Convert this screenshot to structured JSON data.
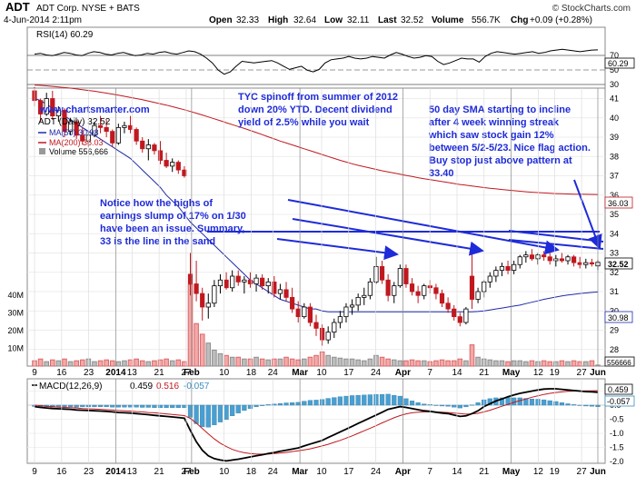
{
  "header": {
    "ticker": "ADT",
    "name": "ADT Corp. NYSE + BATS",
    "datetime": "4-Jun-2014 2:11pm",
    "open_label": "Open",
    "open": "32.33",
    "high_label": "High",
    "high": "32.64",
    "low_label": "Low",
    "low": "32.11",
    "last_label": "Last",
    "last": "32.52",
    "volume_label": "Volume",
    "volume": "556.7K",
    "change_label": "Chg",
    "change": "+0.09 (+0.28%)",
    "copyright": "© StockCharts.com"
  },
  "rsi": {
    "legend": "RSI(14) 60.29",
    "ticks": [
      70,
      50,
      30
    ],
    "value_tag": "60.29",
    "values": [
      55,
      56,
      54,
      53,
      55,
      57,
      56,
      54,
      53,
      56,
      58,
      57,
      55,
      54,
      56,
      57,
      55,
      53,
      54,
      56,
      55,
      57,
      58,
      56,
      55,
      57,
      59,
      58,
      55,
      50,
      44,
      35,
      30,
      33,
      40,
      46,
      45,
      44,
      45,
      46,
      47,
      44,
      40,
      36,
      38,
      40,
      35,
      33,
      36,
      44,
      48,
      49,
      50,
      52,
      50,
      49,
      50,
      52,
      51,
      50,
      54,
      57,
      55,
      52,
      50,
      51,
      53,
      52,
      46,
      42,
      44,
      47,
      50,
      49,
      49,
      45,
      52,
      56,
      58,
      57,
      56,
      55,
      56,
      57,
      58,
      56,
      57,
      59,
      60,
      61,
      60,
      59,
      58,
      59,
      60,
      60.29
    ]
  },
  "price": {
    "website": "www.chartsmarter.com",
    "legend_symbol": "ADT (Daily) 32.52",
    "ma50_label": "MA(50) 30.98",
    "ma200_label": "MA(200) 36.03",
    "volume_label": "Volume 556,666",
    "y_ticks": [
      41,
      40,
      39,
      38,
      37,
      36,
      35,
      34,
      33,
      32,
      31,
      30,
      29,
      28
    ],
    "volume_ticks": [
      "40M",
      "30M",
      "20M",
      "10M"
    ],
    "tags": {
      "last": "32.52",
      "ma200": "36.03",
      "ma50": "30.98",
      "volume": "556666"
    },
    "annotations": [
      {
        "id": "tyc",
        "lines": [
          "TYC spinoff from summer of 2012",
          "down 20% YTD. Decent dividend",
          "yield of 2.5% while you wait"
        ]
      },
      {
        "id": "sma",
        "lines": [
          "50 day SMA starting to incline",
          "after 4 week winning streak",
          "which saw stock gain 12%",
          "between 5/2-5/23. Nice flag action.",
          "Buy stop just above pattern at",
          "33.40"
        ]
      },
      {
        "id": "highs",
        "lines": [
          "Notice how the highs of",
          "earnings slump of 17% on 1/30",
          "have been an issue. Summary,",
          "33 is the line in the sand"
        ]
      }
    ]
  },
  "macd": {
    "legend_name": "MACD(12,26,9)",
    "macd": "0.459",
    "signal": "0.516",
    "hist": "-0.057",
    "y_ticks": [
      0.5,
      0.0,
      -0.5,
      -1.0,
      -1.5,
      -2.0
    ],
    "tags": {
      "macd": "0.459",
      "hist": "-0.057"
    }
  },
  "x_axis": {
    "labels": [
      {
        "t": "9",
        "bold": false
      },
      {
        "t": "16",
        "bold": false
      },
      {
        "t": "23",
        "bold": false
      },
      {
        "t": "2014",
        "bold": true
      },
      {
        "t": "13",
        "bold": false
      },
      {
        "t": "21",
        "bold": false
      },
      {
        "t": "27",
        "bold": false
      },
      {
        "t": "Feb",
        "bold": true
      },
      {
        "t": "10",
        "bold": false
      },
      {
        "t": "18",
        "bold": false
      },
      {
        "t": "24",
        "bold": false
      },
      {
        "t": "Mar",
        "bold": true
      },
      {
        "t": "10",
        "bold": false
      },
      {
        "t": "17",
        "bold": false
      },
      {
        "t": "24",
        "bold": false
      },
      {
        "t": "Apr",
        "bold": true
      },
      {
        "t": "7",
        "bold": false
      },
      {
        "t": "14",
        "bold": false
      },
      {
        "t": "21",
        "bold": false
      },
      {
        "t": "May",
        "bold": true
      },
      {
        "t": "12",
        "bold": false
      },
      {
        "t": "19",
        "bold": false
      },
      {
        "t": "27",
        "bold": false
      },
      {
        "t": "Jun",
        "bold": true
      }
    ]
  },
  "chart_data": {
    "type": "candlestick",
    "symbol": "ADT",
    "dates_start": "2013-12-09",
    "ohlc": [
      [
        41.4,
        41.6,
        40.6,
        40.9
      ],
      [
        40.9,
        41.0,
        39.8,
        40.2
      ],
      [
        40.2,
        41.3,
        40.1,
        41.0
      ],
      [
        41.0,
        41.4,
        39.9,
        40.1
      ],
      [
        40.1,
        40.6,
        39.8,
        40.4
      ],
      [
        40.4,
        40.5,
        39.0,
        39.3
      ],
      [
        39.3,
        40.0,
        39.1,
        39.8
      ],
      [
        39.8,
        39.9,
        38.9,
        39.1
      ],
      [
        39.1,
        39.5,
        38.6,
        38.8
      ],
      [
        38.8,
        39.3,
        38.5,
        39.1
      ],
      [
        39.1,
        39.8,
        39.0,
        39.6
      ],
      [
        39.6,
        40.1,
        39.2,
        39.5
      ],
      [
        39.5,
        39.9,
        39.0,
        39.3
      ],
      [
        39.3,
        39.4,
        38.5,
        38.7
      ],
      [
        38.7,
        39.7,
        38.6,
        39.5
      ],
      [
        39.5,
        39.8,
        39.2,
        39.6
      ],
      [
        39.6,
        40.1,
        39.2,
        39.4
      ],
      [
        39.4,
        39.5,
        38.6,
        38.8
      ],
      [
        38.8,
        39.0,
        38.2,
        38.4
      ],
      [
        38.4,
        38.9,
        37.8,
        38.6
      ],
      [
        38.6,
        38.7,
        38.1,
        38.3
      ],
      [
        38.3,
        38.8,
        37.6,
        37.8
      ],
      [
        37.8,
        38.2,
        37.4,
        37.5
      ],
      [
        37.5,
        37.9,
        37.2,
        37.7
      ],
      [
        37.7,
        37.8,
        37.1,
        37.3
      ],
      [
        37.3,
        37.5,
        36.9,
        37.0
      ],
      [
        31.9,
        33.0,
        30.8,
        31.4
      ],
      [
        31.4,
        32.6,
        30.5,
        30.9
      ],
      [
        30.9,
        31.2,
        29.5,
        30.2
      ],
      [
        30.2,
        30.9,
        29.6,
        30.4
      ],
      [
        30.4,
        31.6,
        30.2,
        31.3
      ],
      [
        31.3,
        31.9,
        30.9,
        31.6
      ],
      [
        31.6,
        32.0,
        31.1,
        31.2
      ],
      [
        31.2,
        32.1,
        31.0,
        31.8
      ],
      [
        31.8,
        32.1,
        31.3,
        31.5
      ],
      [
        31.5,
        31.8,
        30.9,
        31.6
      ],
      [
        31.6,
        32.0,
        31.2,
        31.4
      ],
      [
        31.4,
        31.9,
        31.0,
        31.7
      ],
      [
        31.7,
        31.9,
        31.1,
        31.3
      ],
      [
        31.3,
        31.7,
        30.9,
        31.5
      ],
      [
        31.5,
        31.8,
        30.7,
        30.9
      ],
      [
        30.9,
        31.4,
        30.6,
        31.1
      ],
      [
        31.1,
        31.5,
        30.5,
        30.7
      ],
      [
        30.7,
        31.2,
        29.9,
        30.1
      ],
      [
        30.1,
        30.5,
        29.4,
        29.7
      ],
      [
        29.7,
        30.4,
        29.6,
        30.2
      ],
      [
        30.2,
        30.4,
        29.2,
        29.4
      ],
      [
        29.4,
        29.8,
        28.7,
        29.1
      ],
      [
        29.1,
        29.3,
        28.2,
        28.5
      ],
      [
        28.5,
        29.2,
        28.3,
        28.9
      ],
      [
        28.9,
        29.6,
        28.6,
        29.4
      ],
      [
        29.4,
        30.0,
        29.1,
        29.7
      ],
      [
        29.7,
        30.4,
        29.4,
        30.2
      ],
      [
        30.2,
        30.6,
        29.8,
        30.3
      ],
      [
        30.3,
        30.9,
        30.0,
        30.7
      ],
      [
        30.7,
        31.2,
        30.3,
        30.8
      ],
      [
        30.8,
        31.7,
        30.6,
        31.5
      ],
      [
        31.5,
        32.8,
        31.4,
        32.3
      ],
      [
        32.3,
        32.6,
        31.4,
        31.6
      ],
      [
        31.6,
        31.9,
        30.5,
        30.8
      ],
      [
        30.8,
        31.5,
        30.4,
        31.3
      ],
      [
        31.3,
        32.4,
        31.2,
        32.2
      ],
      [
        32.2,
        32.4,
        31.2,
        31.4
      ],
      [
        31.4,
        31.7,
        30.8,
        31.0
      ],
      [
        31.0,
        31.3,
        30.4,
        30.8
      ],
      [
        30.8,
        31.4,
        30.6,
        31.3
      ],
      [
        31.3,
        31.6,
        30.9,
        31.2
      ],
      [
        31.2,
        31.4,
        30.6,
        30.9
      ],
      [
        30.9,
        31.1,
        30.2,
        30.4
      ],
      [
        30.4,
        30.7,
        29.9,
        30.1
      ],
      [
        30.1,
        30.3,
        29.5,
        29.7
      ],
      [
        29.7,
        29.9,
        29.2,
        29.4
      ],
      [
        29.4,
        30.2,
        29.3,
        30.1
      ],
      [
        31.8,
        33.1,
        30.1,
        30.6
      ],
      [
        30.6,
        31.2,
        30.4,
        31.0
      ],
      [
        31.0,
        31.6,
        30.7,
        31.5
      ],
      [
        31.5,
        32.0,
        31.2,
        31.8
      ],
      [
        31.8,
        32.3,
        31.5,
        32.1
      ],
      [
        32.1,
        32.5,
        31.8,
        32.3
      ],
      [
        32.3,
        32.6,
        31.9,
        32.1
      ],
      [
        32.1,
        32.6,
        31.9,
        32.4
      ],
      [
        32.4,
        32.9,
        32.2,
        32.8
      ],
      [
        32.8,
        33.1,
        32.5,
        32.9
      ],
      [
        32.9,
        33.2,
        32.6,
        32.7
      ],
      [
        32.7,
        33.0,
        32.4,
        32.9
      ],
      [
        32.9,
        33.1,
        32.6,
        32.8
      ],
      [
        32.8,
        33.0,
        32.4,
        32.6
      ],
      [
        32.6,
        32.9,
        32.3,
        32.7
      ],
      [
        32.7,
        33.0,
        32.5,
        32.6
      ],
      [
        32.6,
        32.9,
        32.4,
        32.8
      ],
      [
        32.8,
        32.9,
        32.3,
        32.5
      ],
      [
        32.5,
        32.8,
        32.2,
        32.4
      ],
      [
        32.4,
        32.7,
        32.2,
        32.5
      ],
      [
        32.5,
        32.7,
        32.3,
        32.43
      ],
      [
        32.33,
        32.64,
        32.11,
        32.52
      ]
    ],
    "volume_millions": [
      3,
      4,
      2.5,
      3.5,
      3,
      4,
      2.5,
      3,
      3.5,
      4,
      2.5,
      3,
      3.5,
      3,
      2.5,
      3,
      3.5,
      4,
      3,
      2.5,
      3,
      3.5,
      4,
      3,
      3.5,
      2.5,
      46,
      24,
      18,
      13,
      9,
      7,
      6,
      5,
      5,
      4,
      4,
      5,
      4,
      3.5,
      4,
      4,
      5,
      4,
      3.5,
      4,
      5,
      6,
      8,
      6,
      5,
      4.5,
      4,
      4,
      3.5,
      3,
      4,
      6,
      5,
      4,
      3.5,
      3,
      3,
      3.5,
      3,
      3,
      2.5,
      3,
      3.5,
      3,
      3,
      4,
      3,
      12,
      5,
      4,
      3.5,
      3,
      3,
      2.5,
      3,
      3,
      2.5,
      3,
      2.5,
      3,
      2.5,
      2.5,
      3,
      2.5,
      3,
      2.5,
      2.5,
      3,
      0.56
    ],
    "ma50": [
      41.0,
      40.9,
      40.7,
      40.5,
      40.3,
      40.1,
      39.9,
      39.7,
      39.5,
      39.3,
      39.1,
      38.9,
      38.7,
      38.5,
      38.3,
      38.1,
      37.9,
      37.6,
      37.3,
      37.0,
      36.7,
      36.4,
      36.0,
      35.7,
      35.4,
      35.0,
      34.6,
      34.3,
      34.0,
      33.7,
      33.4,
      33.1,
      32.8,
      32.5,
      32.2,
      31.9,
      31.6,
      31.4,
      31.2,
      31.0,
      30.8,
      30.6,
      30.5,
      30.4,
      30.3,
      30.2,
      30.1,
      30.1,
      30.0,
      29.95,
      29.95,
      29.95,
      29.95,
      29.95,
      29.95,
      29.95,
      29.95,
      29.95,
      29.95,
      29.95,
      29.95,
      29.95,
      29.95,
      29.95,
      29.95,
      29.95,
      29.95,
      29.95,
      29.95,
      29.95,
      29.95,
      29.95,
      29.95,
      29.95,
      29.97,
      30.0,
      30.05,
      30.1,
      30.15,
      30.2,
      30.25,
      30.3,
      30.38,
      30.45,
      30.52,
      30.6,
      30.66,
      30.72,
      30.78,
      30.82,
      30.86,
      30.9,
      30.93,
      30.96,
      30.98
    ],
    "ma200": [
      41.7,
      41.68,
      41.66,
      41.63,
      41.6,
      41.57,
      41.54,
      41.5,
      41.46,
      41.42,
      41.38,
      41.33,
      41.28,
      41.23,
      41.18,
      41.12,
      41.06,
      41.0,
      40.94,
      40.87,
      40.8,
      40.73,
      40.66,
      40.58,
      40.5,
      40.42,
      40.33,
      40.24,
      40.15,
      40.05,
      39.95,
      39.85,
      39.75,
      39.65,
      39.55,
      39.45,
      39.35,
      39.24,
      39.13,
      39.02,
      38.91,
      38.8,
      38.7,
      38.6,
      38.5,
      38.4,
      38.3,
      38.2,
      38.1,
      38.0,
      37.9,
      37.8,
      37.71,
      37.62,
      37.54,
      37.47,
      37.4,
      37.33,
      37.26,
      37.2,
      37.14,
      37.08,
      37.02,
      36.96,
      36.9,
      36.85,
      36.8,
      36.75,
      36.7,
      36.65,
      36.6,
      36.55,
      36.51,
      36.47,
      36.43,
      36.39,
      36.35,
      36.32,
      36.29,
      36.26,
      36.23,
      36.2,
      36.17,
      36.15,
      36.13,
      36.11,
      36.09,
      36.08,
      36.07,
      36.06,
      36.05,
      36.045,
      36.04,
      36.035,
      36.03
    ],
    "macd_line": [
      -0.05,
      -0.08,
      -0.1,
      -0.12,
      -0.13,
      -0.14,
      -0.15,
      -0.17,
      -0.18,
      -0.19,
      -0.2,
      -0.21,
      -0.22,
      -0.24,
      -0.26,
      -0.27,
      -0.28,
      -0.3,
      -0.32,
      -0.34,
      -0.36,
      -0.38,
      -0.4,
      -0.42,
      -0.44,
      -0.46,
      -0.9,
      -1.3,
      -1.6,
      -1.8,
      -1.9,
      -1.95,
      -1.98,
      -1.95,
      -1.92,
      -1.88,
      -1.84,
      -1.8,
      -1.76,
      -1.72,
      -1.68,
      -1.64,
      -1.6,
      -1.56,
      -1.52,
      -1.45,
      -1.38,
      -1.32,
      -1.25,
      -1.15,
      -1.05,
      -0.95,
      -0.85,
      -0.75,
      -0.65,
      -0.55,
      -0.45,
      -0.35,
      -0.25,
      -0.15,
      -0.1,
      -0.05,
      -0.08,
      -0.12,
      -0.16,
      -0.2,
      -0.22,
      -0.25,
      -0.28,
      -0.3,
      -0.35,
      -0.4,
      -0.38,
      -0.3,
      -0.2,
      -0.05,
      0.05,
      0.15,
      0.22,
      0.3,
      0.36,
      0.42,
      0.46,
      0.5,
      0.54,
      0.57,
      0.58,
      0.58,
      0.56,
      0.54,
      0.52,
      0.5,
      0.48,
      0.47,
      0.459
    ],
    "signal_line": [
      0.0,
      -0.02,
      -0.04,
      -0.05,
      -0.07,
      -0.08,
      -0.09,
      -0.1,
      -0.12,
      -0.13,
      -0.14,
      -0.15,
      -0.16,
      -0.17,
      -0.19,
      -0.2,
      -0.21,
      -0.23,
      -0.24,
      -0.26,
      -0.27,
      -0.29,
      -0.31,
      -0.33,
      -0.35,
      -0.37,
      -0.47,
      -0.64,
      -0.83,
      -1.02,
      -1.2,
      -1.35,
      -1.47,
      -1.57,
      -1.64,
      -1.69,
      -1.72,
      -1.74,
      -1.74,
      -1.74,
      -1.72,
      -1.7,
      -1.68,
      -1.65,
      -1.62,
      -1.59,
      -1.55,
      -1.5,
      -1.45,
      -1.39,
      -1.32,
      -1.25,
      -1.17,
      -1.09,
      -1.0,
      -0.91,
      -0.82,
      -0.73,
      -0.63,
      -0.54,
      -0.45,
      -0.37,
      -0.31,
      -0.27,
      -0.25,
      -0.24,
      -0.24,
      -0.24,
      -0.25,
      -0.26,
      -0.28,
      -0.3,
      -0.32,
      -0.31,
      -0.29,
      -0.24,
      -0.18,
      -0.11,
      -0.04,
      0.03,
      0.1,
      0.16,
      0.22,
      0.28,
      0.33,
      0.38,
      0.42,
      0.45,
      0.47,
      0.49,
      0.5,
      0.5,
      0.51,
      0.51,
      0.516
    ]
  }
}
